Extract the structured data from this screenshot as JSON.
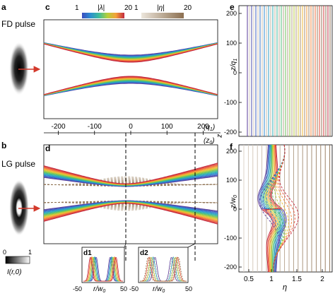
{
  "labels": {
    "a": "a",
    "b": "b",
    "c": "c",
    "d": "d",
    "e": "e",
    "f": "f",
    "d1": "d1",
    "d2": "d2",
    "fd_pulse": "FD pulse",
    "lg_pulse": "LG pulse"
  },
  "colorbars": {
    "lambda": {
      "label": "|λ|",
      "min": "1",
      "max": "20"
    },
    "eta": {
      "label": "|η|",
      "min": "1",
      "max": "20"
    },
    "intensity": {
      "label": "I(r,0)",
      "min": "0",
      "max": "1"
    }
  },
  "axes": {
    "z_axis": {
      "ticks": [
        "-200",
        "-100",
        "0",
        "100",
        "200"
      ],
      "unit_top": "(q",
      "unit_top_sub": "1",
      "unit_top_close": ")",
      "unit_bottom": "(z",
      "unit_bottom_sub": "0",
      "unit_bottom_close": ")",
      "var": "z"
    },
    "e_y": {
      "ticks": [
        "200",
        "100",
        "0",
        "-100",
        "-200"
      ],
      "label": "z/q",
      "label_sub": "1"
    },
    "f_y": {
      "ticks": [
        "200",
        "100",
        "0",
        "-100",
        "-200"
      ],
      "label": "z/w",
      "label_sub": "0"
    },
    "f_x": {
      "ticks": [
        "0.5",
        "1",
        "1.5",
        "2"
      ],
      "label": "η"
    },
    "d_inset_x": {
      "ticks": [
        "-50",
        "0",
        "50"
      ],
      "label": "r/w",
      "label_sub": "0"
    }
  },
  "colors": {
    "spectrum": [
      "#5a3b9a",
      "#3b5fc4",
      "#2c8fd1",
      "#2bb3b0",
      "#58c06a",
      "#a7cc3a",
      "#f0c233",
      "#f4893a",
      "#e8503a",
      "#c2283f"
    ],
    "eta_light": "#d9cfc2",
    "eta_dark": "#8c6f50",
    "arrow": "#d33a2c"
  },
  "icons": {
    "arrow_a": "right-arrow-icon",
    "arrow_b": "right-arrow-icon"
  }
}
